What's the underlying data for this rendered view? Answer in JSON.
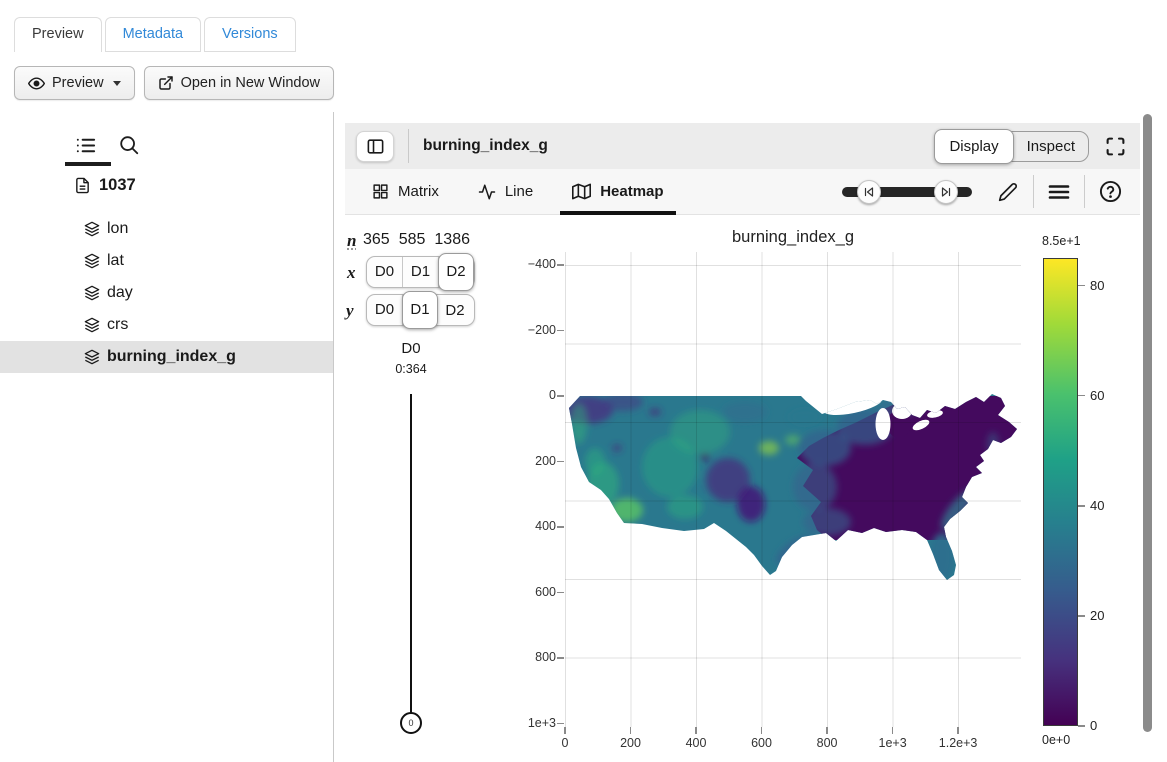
{
  "top_tabs": {
    "preview": "Preview",
    "metadata": "Metadata",
    "versions": "Versions"
  },
  "actions": {
    "preview_label": "Preview",
    "open_label": "Open in New Window"
  },
  "sidebar": {
    "root_label": "1037",
    "items": [
      {
        "label": "lon"
      },
      {
        "label": "lat"
      },
      {
        "label": "day"
      },
      {
        "label": "crs"
      },
      {
        "label": "burning_index_g"
      }
    ]
  },
  "main": {
    "title": "burning_index_g",
    "display_label": "Display",
    "inspect_label": "Inspect",
    "vis_tabs": {
      "matrix": "Matrix",
      "line": "Line",
      "heatmap": "Heatmap"
    }
  },
  "dims": {
    "n_label": "n",
    "sizes": [
      "365",
      "585",
      "1386"
    ],
    "x_label": "x",
    "y_label": "y",
    "options": [
      "D0",
      "D1",
      "D2"
    ],
    "x_selected": "D2",
    "y_selected": "D1",
    "slicer": {
      "dim": "D0",
      "range": "0:364",
      "value": "0"
    }
  },
  "chart_data": {
    "type": "heatmap",
    "title": "burning_index_g",
    "dataset_shape": [
      365,
      585,
      1386
    ],
    "slice": "D0 = 0",
    "x_axis": {
      "domain": [
        0,
        1392
      ],
      "tick_values": [
        0,
        200,
        400,
        600,
        800,
        1000,
        1200
      ],
      "tick_labels": [
        "0",
        "200",
        "400",
        "600",
        "800",
        "1e+3",
        "1.2e+3"
      ]
    },
    "y_axis": {
      "inverted": true,
      "domain": [
        -440,
        1010
      ],
      "tick_values": [
        -400,
        -200,
        0,
        200,
        400,
        600,
        800,
        1000
      ],
      "tick_labels": [
        "−400",
        "−200",
        "0",
        "200",
        "400",
        "600",
        "800",
        "1e+3"
      ]
    },
    "colorbar": {
      "colormap": "viridis",
      "domain": [
        0,
        85
      ],
      "max_label": "8.5e+1",
      "min_label": "0e+0",
      "tick_values": [
        0,
        20,
        40,
        60,
        80
      ],
      "tick_labels": [
        "0",
        "20",
        "40",
        "60",
        "80"
      ]
    },
    "data_extent": {
      "x": [
        0,
        1386
      ],
      "y": [
        0,
        585
      ]
    },
    "description": "Continental US burning index heatmap: high (green/teal) values in the west, low (dark purple) values in the east"
  },
  "colors": {
    "accent_blue": "#3189d8",
    "grid": "#dedede",
    "viridis_low": "#440154",
    "viridis_high": "#fde725"
  }
}
